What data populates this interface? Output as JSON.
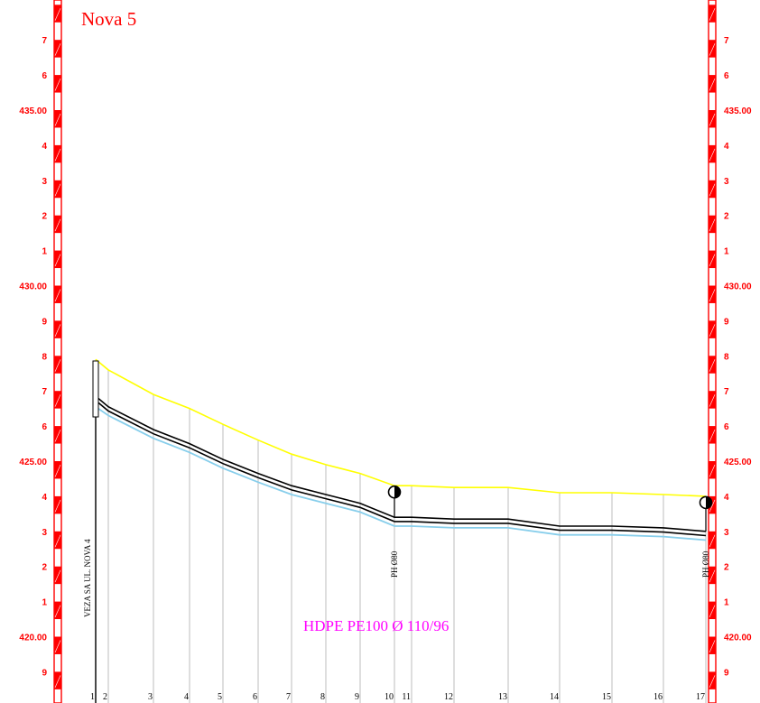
{
  "title": "Nova 5",
  "pipe_label": "HDPE PE100 Ø 110/96",
  "connection_label": "VEZA SA UL. NOVA 4",
  "colors": {
    "scale": "#ff0000",
    "terrain": "#ffff00",
    "pipe": "#000000",
    "bottom": "#87ceeb",
    "station_line": "#c8c8c8",
    "pipe_label": "#ff00ff"
  },
  "scale_labels": [
    {
      "text": "7",
      "elev": 427.0
    },
    {
      "text": "6",
      "elev": 426.0
    },
    {
      "text": "435.00",
      "elev": 425.0
    },
    {
      "text": "4",
      "elev": 424.0
    },
    {
      "text": "3",
      "elev": 423.0
    },
    {
      "text": "2",
      "elev": 422.0
    },
    {
      "text": "1",
      "elev": 421.0
    },
    {
      "text": "430.00",
      "elev": 420.0
    },
    {
      "text": "9",
      "elev": 419.0
    },
    {
      "text": "8",
      "elev": 418.0
    },
    {
      "text": "7",
      "elev": 417.0
    },
    {
      "text": "6",
      "elev": 416.0
    },
    {
      "text": "425.00",
      "elev": 415.0
    },
    {
      "text": "4",
      "elev": 414.0
    },
    {
      "text": "3",
      "elev": 413.0
    },
    {
      "text": "2",
      "elev": 412.0
    },
    {
      "text": "1",
      "elev": 411.0
    },
    {
      "text": "420.00",
      "elev": 410.0
    },
    {
      "text": "9",
      "elev": 409.0
    }
  ],
  "stations": [
    "1",
    "2",
    "3",
    "4",
    "5",
    "6",
    "7",
    "8",
    "9",
    "10",
    "11",
    "12",
    "13",
    "14",
    "15",
    "16",
    "17"
  ],
  "terrain_elev": [
    417.9,
    417.6,
    416.9,
    416.5,
    416.05,
    415.6,
    415.2,
    414.9,
    414.65,
    414.3,
    414.3,
    414.25,
    414.25,
    414.1,
    414.1,
    414.05,
    414.0
  ],
  "pipe_top_elev": [
    416.85,
    416.55,
    415.9,
    415.5,
    415.05,
    414.65,
    414.3,
    414.05,
    413.8,
    413.4,
    413.4,
    413.35,
    413.35,
    413.15,
    413.15,
    413.1,
    413.0
  ],
  "bottom_elev": [
    416.55,
    416.3,
    415.65,
    415.25,
    414.8,
    414.4,
    414.05,
    413.8,
    413.55,
    413.15,
    413.15,
    413.1,
    413.1,
    412.9,
    412.9,
    412.85,
    412.75
  ],
  "hydrants": [
    {
      "label": "PH Ø80",
      "station_index": 9
    },
    {
      "label": "PH Ø80",
      "station_index": 16
    }
  ]
}
